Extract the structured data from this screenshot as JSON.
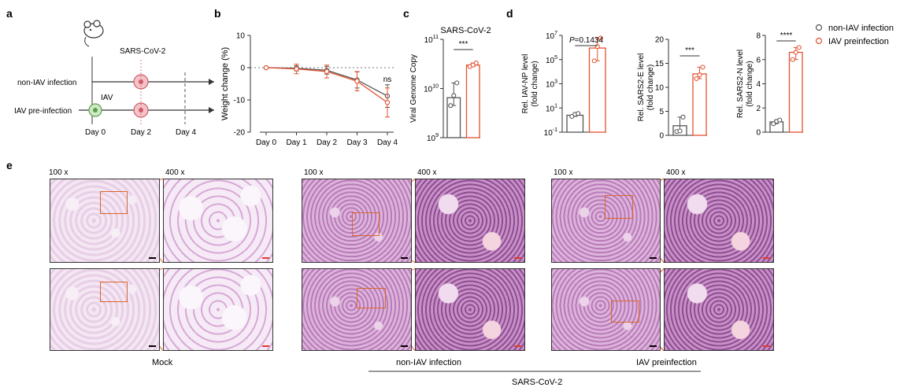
{
  "panel_labels": [
    "a",
    "b",
    "c",
    "d",
    "e"
  ],
  "colors": {
    "control": "#555555",
    "iav": "#e4522f",
    "dashed": "#777777"
  },
  "schematic": {
    "virus_label": "SARS-CoV-2",
    "group1": "non-IAV infection",
    "group2": "IAV pre-infection",
    "iav_label": "IAV",
    "days": [
      "Day 0",
      "Day 2",
      "Day 4"
    ]
  },
  "legend": [
    {
      "label": "non-IAV infection",
      "color": "#555555"
    },
    {
      "label": "IAV preinfection",
      "color": "#e4522f"
    }
  ],
  "chart_data": [
    {
      "id": "b",
      "type": "line",
      "ylabel": "Weight change (%)",
      "categories": [
        "Day 0",
        "Day 1",
        "Day 2",
        "Day 3",
        "Day 4"
      ],
      "ylim": [
        -20,
        10
      ],
      "yticks": [
        "10",
        "0",
        "-10",
        "-20"
      ],
      "reference_line": 0,
      "series": [
        {
          "values": [
            0,
            -0.2,
            -0.8,
            -3.8,
            -8.8
          ],
          "err": [
            0,
            0.8,
            1.2,
            2.5,
            3.5
          ]
        },
        {
          "values": [
            0,
            -0.4,
            -1.2,
            -4.2,
            -10.8
          ],
          "err": [
            0,
            1.5,
            2.0,
            3.0,
            4.5
          ]
        }
      ],
      "annotation": "ns"
    },
    {
      "id": "c",
      "type": "bar",
      "title": "SARS-CoV-2",
      "ylabel": "Viral Genome Copy",
      "log_scale": true,
      "ylim_exp": [
        9,
        11
      ],
      "ytick_exps": [
        9,
        10,
        11
      ],
      "values": [
        6500000000,
        30000000000
      ],
      "points": [
        [
          4500000000,
          7200000000,
          13000000000
        ],
        [
          28000000000,
          30000000000,
          33000000000
        ]
      ],
      "significance": "***"
    },
    {
      "id": "d1",
      "type": "bar",
      "ylabel": "Rel. IAV-NP level",
      "ylabel2": "(fold change)",
      "log_scale": true,
      "ylim_exp": [
        -1,
        7
      ],
      "ytick_exps": [
        -1,
        1,
        3,
        5,
        7
      ],
      "values": [
        2.5,
        900000
      ],
      "points": [
        [
          2,
          3,
          3.5
        ],
        [
          80000,
          1200000,
          6000000
        ]
      ],
      "significance": "P=0.1434"
    },
    {
      "id": "d2",
      "type": "bar",
      "ylabel": "Rel. SARS2-E level",
      "ylabel2": "(fold change)",
      "ylim": [
        0,
        20
      ],
      "yticks": [
        0,
        5,
        10,
        15,
        20
      ],
      "values": [
        2,
        12.8
      ],
      "points": [
        [
          0.8,
          0.9,
          3.8
        ],
        [
          11.8,
          12.6,
          14.2
        ]
      ],
      "significance": "***"
    },
    {
      "id": "d3",
      "type": "bar",
      "ylabel": "Rel. SARS2-N level",
      "ylabel2": "(fold change)",
      "ylim": [
        0,
        8
      ],
      "yticks": [
        0,
        2,
        4,
        6,
        8
      ],
      "values": [
        0.85,
        6.6
      ],
      "points": [
        [
          0.7,
          0.9,
          1.0
        ],
        [
          6.0,
          6.6,
          7.0
        ]
      ],
      "significance": "****"
    }
  ],
  "histology": {
    "mag_low": "100 x",
    "mag_high": "400 x",
    "groups": [
      "Mock",
      "non-IAV infection",
      "IAV preinfection"
    ],
    "bracket_label": "SARS-CoV-2"
  }
}
